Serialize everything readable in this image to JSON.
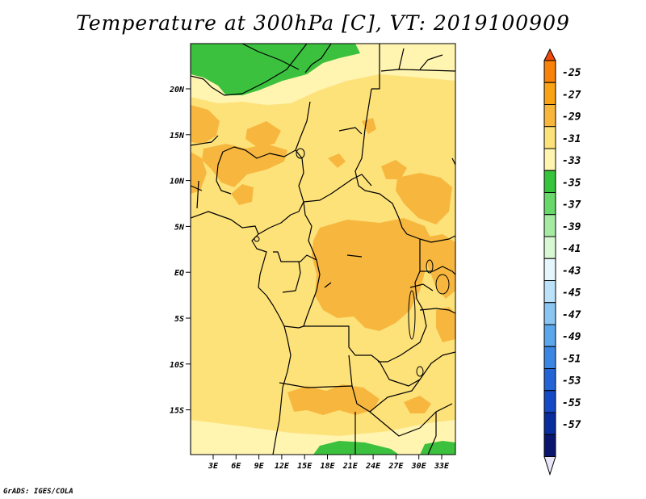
{
  "title": "Temperature at 300hPa [C], VT: 2019100909",
  "credit": "GrADS: IGES/COLA",
  "map": {
    "lat_labels": [
      "20N",
      "15N",
      "10N",
      "5N",
      "EQ",
      "5S",
      "10S",
      "15S"
    ],
    "lon_labels": [
      "3E",
      "6E",
      "9E",
      "12E",
      "15E",
      "18E",
      "21E",
      "24E",
      "27E",
      "30E",
      "33E"
    ],
    "colors": {
      "base": "#fde27a",
      "warm": "#f7b73f",
      "cool_light": "#fff4b0",
      "cool_green": "#3cc13f",
      "border": "#000000"
    }
  },
  "colorbar": {
    "labels": [
      "-25",
      "-27",
      "-29",
      "-31",
      "-33",
      "-35",
      "-37",
      "-39",
      "-41",
      "-43",
      "-45",
      "-47",
      "-49",
      "-51",
      "-53",
      "-55",
      "-57"
    ],
    "colors": [
      "#f04a0c",
      "#f9820a",
      "#f9a214",
      "#f8b73c",
      "#fde27a",
      "#fff4b0",
      "#36c43c",
      "#69d86a",
      "#a6eba2",
      "#d8f8d4",
      "#e6f6fd",
      "#bbe2f8",
      "#8bc6f2",
      "#5ca7ec",
      "#3b86e2",
      "#2464d6",
      "#154ac6",
      "#0a2d9e",
      "#0a166e",
      "#e8e6f8"
    ]
  }
}
